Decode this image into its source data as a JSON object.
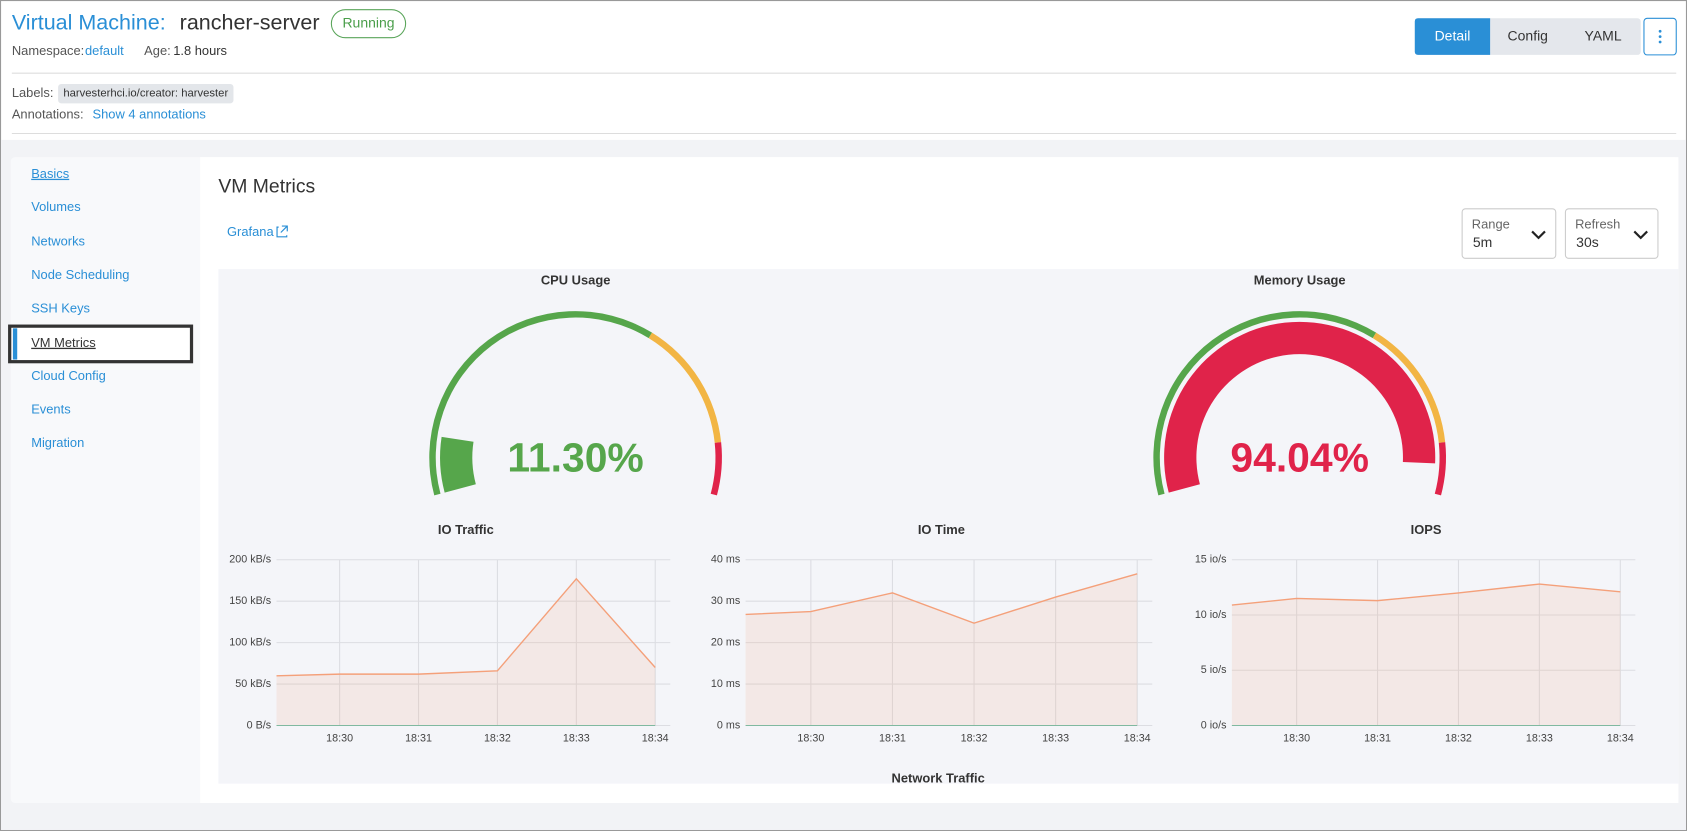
{
  "header": {
    "kind": "Virtual Machine:",
    "name": "rancher-server",
    "status": "Running",
    "namespace_label": "Namespace:",
    "namespace": "default",
    "age_label": "Age:",
    "age": "1.8 hours",
    "tabs": [
      "Detail",
      "Config",
      "YAML"
    ],
    "labels_label": "Labels:",
    "label_chip": "harvesterhci.io/creator: harvester",
    "annotations_label": "Annotations:",
    "annotations_link": "Show 4 annotations"
  },
  "sidebar": [
    "Basics",
    "Volumes",
    "Networks",
    "Node Scheduling",
    "SSH Keys",
    "VM Metrics",
    "Cloud Config",
    "Events",
    "Migration"
  ],
  "metrics": {
    "title": "VM Metrics",
    "grafana": "Grafana",
    "range_label": "Range",
    "range": "5m",
    "refresh_label": "Refresh",
    "refresh": "30s",
    "next_panel": "Network Traffic"
  },
  "chart_data": [
    {
      "type": "gauge",
      "title": "CPU Usage",
      "values": [
        11.3
      ],
      "value_labels": [
        "11.30%"
      ],
      "ylim": [
        0,
        100
      ],
      "thresholds": [
        0,
        65,
        90
      ],
      "threshold_colors": [
        "#56a64b",
        "#f2b544",
        "#e0234a"
      ]
    },
    {
      "type": "gauge",
      "title": "Memory Usage",
      "values": [
        94.04
      ],
      "value_labels": [
        "94.04%"
      ],
      "ylim": [
        0,
        100
      ],
      "thresholds": [
        0,
        65,
        90
      ],
      "threshold_colors": [
        "#56a64b",
        "#f2b544",
        "#e0234a"
      ]
    },
    {
      "type": "area",
      "title": "IO Traffic",
      "color": "#f4a07a",
      "grid": true,
      "x": [
        1109.2,
        1110,
        1111,
        1112,
        1113,
        1114
      ],
      "values": [
        60,
        62,
        62,
        66,
        177,
        70
      ],
      "xlim": [
        1109.2,
        1114
      ],
      "xticks": [
        {
          "value": 1110,
          "label": "18:30"
        },
        {
          "value": 1111,
          "label": "18:31"
        },
        {
          "value": 1112,
          "label": "18:32"
        },
        {
          "value": 1113,
          "label": "18:33"
        },
        {
          "value": 1114,
          "label": "18:34"
        }
      ],
      "ylim": [
        0,
        200
      ],
      "yticks": [
        {
          "value": 0,
          "label": "0 B/s"
        },
        {
          "value": 50,
          "label": "50 kB/s"
        },
        {
          "value": 100,
          "label": "100 kB/s"
        },
        {
          "value": 150,
          "label": "150 kB/s"
        },
        {
          "value": 200,
          "label": "200 kB/s"
        }
      ]
    },
    {
      "type": "area",
      "title": "IO Time",
      "color": "#f4a07a",
      "grid": true,
      "x": [
        1109.2,
        1110,
        1111,
        1112,
        1113,
        1114
      ],
      "values": [
        26.8,
        27.5,
        32,
        24.7,
        31,
        36.6
      ],
      "xlim": [
        1109.2,
        1114
      ],
      "xticks": [
        {
          "value": 1110,
          "label": "18:30"
        },
        {
          "value": 1111,
          "label": "18:31"
        },
        {
          "value": 1112,
          "label": "18:32"
        },
        {
          "value": 1113,
          "label": "18:33"
        },
        {
          "value": 1114,
          "label": "18:34"
        }
      ],
      "ylim": [
        0,
        40
      ],
      "yticks": [
        {
          "value": 0,
          "label": "0 ms"
        },
        {
          "value": 10,
          "label": "10 ms"
        },
        {
          "value": 20,
          "label": "20 ms"
        },
        {
          "value": 30,
          "label": "30 ms"
        },
        {
          "value": 40,
          "label": "40 ms"
        }
      ]
    },
    {
      "type": "area",
      "title": "IOPS",
      "color": "#f4a07a",
      "grid": true,
      "x": [
        1109.2,
        1110,
        1111,
        1112,
        1113,
        1114
      ],
      "values": [
        10.9,
        11.5,
        11.3,
        12,
        12.8,
        12.1
      ],
      "xlim": [
        1109.2,
        1114
      ],
      "xticks": [
        {
          "value": 1110,
          "label": "18:30"
        },
        {
          "value": 1111,
          "label": "18:31"
        },
        {
          "value": 1112,
          "label": "18:32"
        },
        {
          "value": 1113,
          "label": "18:33"
        },
        {
          "value": 1114,
          "label": "18:34"
        }
      ],
      "ylim": [
        0,
        15
      ],
      "yticks": [
        {
          "value": 0,
          "label": "0 io/s"
        },
        {
          "value": 5,
          "label": "5 io/s"
        },
        {
          "value": 10,
          "label": "10 io/s"
        },
        {
          "value": 15,
          "label": "15 io/s"
        }
      ]
    }
  ]
}
